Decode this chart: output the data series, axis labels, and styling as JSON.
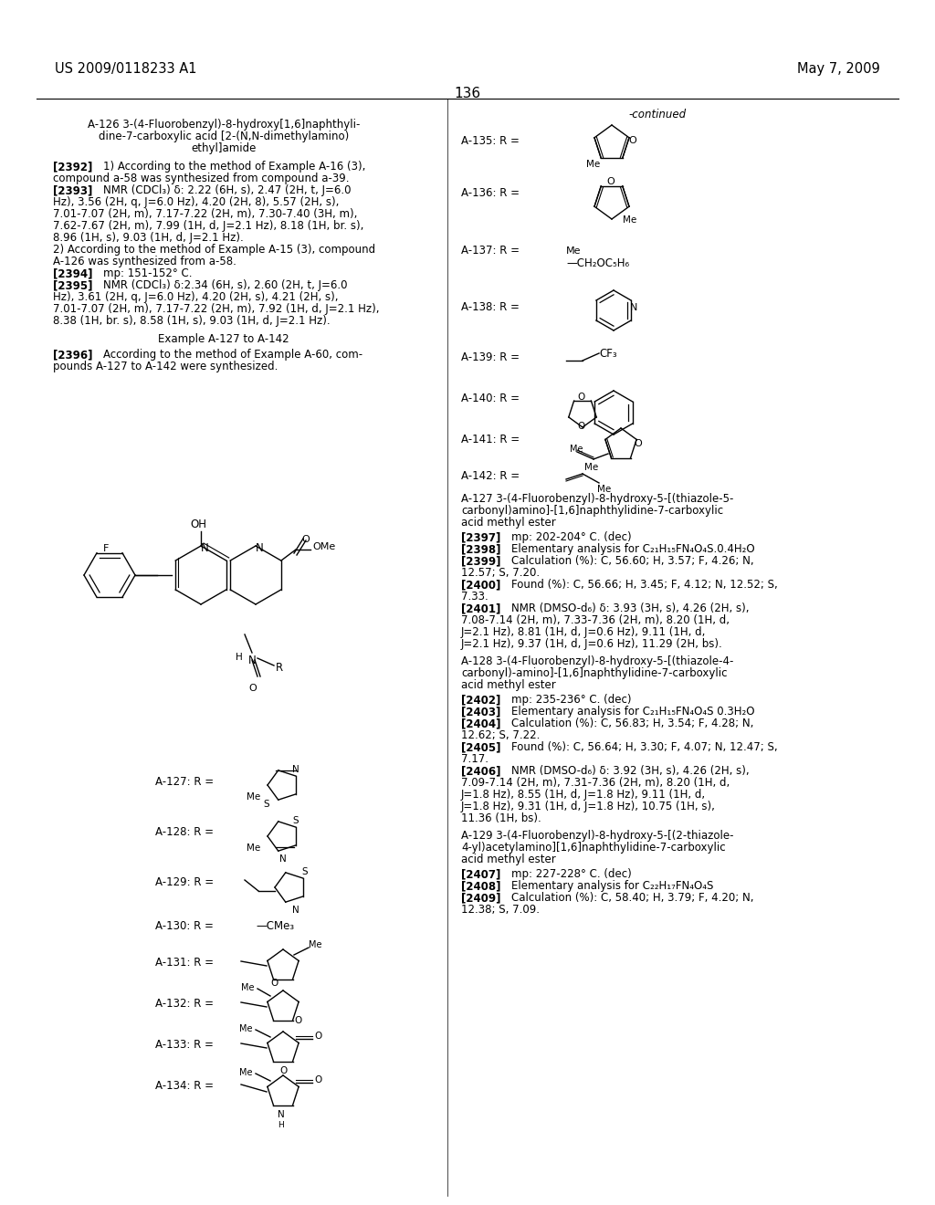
{
  "background_color": "#ffffff",
  "patent_number": "US 2009/0118233 A1",
  "patent_date": "May 7, 2009",
  "page_number": "136",
  "figsize": [
    10.24,
    13.2
  ],
  "dpi": 100
}
